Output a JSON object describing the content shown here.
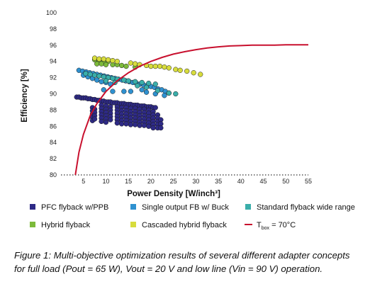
{
  "chart_data": {
    "type": "scatter",
    "xlabel": "Power Density [W/inch³]",
    "ylabel": "Efficiency [%]",
    "xlim": [
      0,
      55
    ],
    "ylim": [
      80,
      100
    ],
    "x_ticks": [
      5,
      10,
      15,
      20,
      25,
      30,
      35,
      40,
      45,
      50,
      55
    ],
    "y_ticks": [
      80,
      82,
      84,
      86,
      88,
      90,
      92,
      94,
      96,
      98,
      100
    ],
    "grid": false,
    "legend_position": "bottom",
    "series": [
      {
        "name": "PFC flyback w/PPB",
        "color": "#2e2a86",
        "kind": "scatter",
        "points": [
          [
            3.5,
            89.6
          ],
          [
            4.0,
            89.6
          ],
          [
            4.5,
            89.5
          ],
          [
            5.0,
            89.5
          ],
          [
            5.5,
            89.5
          ],
          [
            6.0,
            89.4
          ],
          [
            6.5,
            89.4
          ],
          [
            7.0,
            89.3
          ],
          [
            7.5,
            89.3
          ],
          [
            8.0,
            89.2
          ],
          [
            8.5,
            89.2
          ],
          [
            9.0,
            89.1
          ],
          [
            9.5,
            89.1
          ],
          [
            10.0,
            89.0
          ],
          [
            10.5,
            89.0
          ],
          [
            11.0,
            89.0
          ],
          [
            11.5,
            88.9
          ],
          [
            12.0,
            88.9
          ],
          [
            12.5,
            88.9
          ],
          [
            13.0,
            88.8
          ],
          [
            13.5,
            88.8
          ],
          [
            14.0,
            88.8
          ],
          [
            14.5,
            88.7
          ],
          [
            15.0,
            88.7
          ],
          [
            15.5,
            88.7
          ],
          [
            16.0,
            88.6
          ],
          [
            16.5,
            88.6
          ],
          [
            17.0,
            88.6
          ],
          [
            17.5,
            88.5
          ],
          [
            18.0,
            88.5
          ],
          [
            18.5,
            88.5
          ],
          [
            19.0,
            88.4
          ],
          [
            19.5,
            88.4
          ],
          [
            20.0,
            88.4
          ],
          [
            20.5,
            88.3
          ],
          [
            21.0,
            88.3
          ],
          [
            7.0,
            88.3
          ],
          [
            7.0,
            87.9
          ],
          [
            7.0,
            87.5
          ],
          [
            7.0,
            87.1
          ],
          [
            7.0,
            86.7
          ],
          [
            7.5,
            88.1
          ],
          [
            7.5,
            87.7
          ],
          [
            7.5,
            87.3
          ],
          [
            7.5,
            86.9
          ],
          [
            9.0,
            88.6
          ],
          [
            9.0,
            88.2
          ],
          [
            9.0,
            87.8
          ],
          [
            9.0,
            87.4
          ],
          [
            9.0,
            87.0
          ],
          [
            9.0,
            86.6
          ],
          [
            10.0,
            88.5
          ],
          [
            10.0,
            88.1
          ],
          [
            10.0,
            87.7
          ],
          [
            10.0,
            87.3
          ],
          [
            10.0,
            86.9
          ],
          [
            10.0,
            86.5
          ],
          [
            11.0,
            88.4
          ],
          [
            11.0,
            88.0
          ],
          [
            11.0,
            87.6
          ],
          [
            11.0,
            87.2
          ],
          [
            11.0,
            86.8
          ],
          [
            12.5,
            88.4
          ],
          [
            12.5,
            88.0
          ],
          [
            12.5,
            87.6
          ],
          [
            12.5,
            87.2
          ],
          [
            12.5,
            86.8
          ],
          [
            12.5,
            86.4
          ],
          [
            13.5,
            88.3
          ],
          [
            13.5,
            87.9
          ],
          [
            13.5,
            87.5
          ],
          [
            13.5,
            87.1
          ],
          [
            13.5,
            86.7
          ],
          [
            13.5,
            86.3
          ],
          [
            14.5,
            88.3
          ],
          [
            14.5,
            87.9
          ],
          [
            14.5,
            87.5
          ],
          [
            14.5,
            87.1
          ],
          [
            14.5,
            86.7
          ],
          [
            14.5,
            86.3
          ],
          [
            15.5,
            88.2
          ],
          [
            15.5,
            87.8
          ],
          [
            15.5,
            87.4
          ],
          [
            15.5,
            87.0
          ],
          [
            15.5,
            86.6
          ],
          [
            15.5,
            86.2
          ],
          [
            16.5,
            88.2
          ],
          [
            16.5,
            87.8
          ],
          [
            16.5,
            87.4
          ],
          [
            16.5,
            87.0
          ],
          [
            16.5,
            86.6
          ],
          [
            16.5,
            86.2
          ],
          [
            17.5,
            88.1
          ],
          [
            17.5,
            87.7
          ],
          [
            17.5,
            87.3
          ],
          [
            17.5,
            86.9
          ],
          [
            17.5,
            86.5
          ],
          [
            17.5,
            86.1
          ],
          [
            18.5,
            88.1
          ],
          [
            18.5,
            87.7
          ],
          [
            18.5,
            87.3
          ],
          [
            18.5,
            86.9
          ],
          [
            18.5,
            86.5
          ],
          [
            18.5,
            86.1
          ],
          [
            19.5,
            88.0
          ],
          [
            19.5,
            87.6
          ],
          [
            19.5,
            87.2
          ],
          [
            19.5,
            86.8
          ],
          [
            19.5,
            86.4
          ],
          [
            19.5,
            86.0
          ],
          [
            20.5,
            87.8
          ],
          [
            20.5,
            87.4
          ],
          [
            20.5,
            87.0
          ],
          [
            20.5,
            86.6
          ],
          [
            20.5,
            86.2
          ],
          [
            20.5,
            85.8
          ],
          [
            21.5,
            87.4
          ],
          [
            21.5,
            87.0
          ],
          [
            21.5,
            86.6
          ],
          [
            21.5,
            86.2
          ],
          [
            21.5,
            85.8
          ],
          [
            22.2,
            86.8
          ],
          [
            22.2,
            86.3
          ],
          [
            22.2,
            85.8
          ]
        ]
      },
      {
        "name": "Single output FB w/ Buck",
        "color": "#2f91d0",
        "kind": "scatter",
        "points": [
          [
            4.0,
            92.9
          ],
          [
            4.8,
            92.8
          ],
          [
            5.6,
            92.7
          ],
          [
            6.4,
            92.6
          ],
          [
            7.2,
            92.5
          ],
          [
            8.0,
            92.4
          ],
          [
            8.8,
            92.3
          ],
          [
            9.6,
            92.2
          ],
          [
            10.4,
            92.1
          ],
          [
            11.2,
            92.0
          ],
          [
            12.0,
            91.9
          ],
          [
            12.8,
            91.8
          ],
          [
            13.6,
            91.7
          ],
          [
            14.4,
            91.6
          ],
          [
            15.2,
            91.5
          ],
          [
            16.0,
            91.4
          ],
          [
            16.8,
            91.3
          ],
          [
            17.6,
            91.2
          ],
          [
            18.4,
            91.1
          ],
          [
            19.2,
            91.0
          ],
          [
            20.0,
            90.9
          ],
          [
            20.8,
            90.8
          ],
          [
            21.6,
            90.6
          ],
          [
            22.4,
            90.5
          ],
          [
            23.2,
            90.3
          ],
          [
            24.0,
            90.1
          ],
          [
            5.0,
            92.3
          ],
          [
            6.0,
            92.1
          ],
          [
            7.0,
            91.9
          ],
          [
            8.0,
            91.7
          ],
          [
            9.0,
            91.5
          ],
          [
            10.0,
            91.4
          ],
          [
            11.0,
            91.2
          ],
          [
            9.5,
            90.5
          ],
          [
            11.5,
            90.3
          ],
          [
            14.0,
            90.3
          ],
          [
            15.5,
            90.3
          ],
          [
            18.0,
            90.5
          ],
          [
            19.0,
            90.2
          ],
          [
            21.0,
            90.0
          ],
          [
            23.0,
            89.8
          ]
        ]
      },
      {
        "name": "Standard flyback wide range",
        "color": "#3aaeaa",
        "kind": "scatter",
        "points": [
          [
            5.5,
            92.5
          ],
          [
            6.5,
            92.4
          ],
          [
            7.5,
            92.3
          ],
          [
            8.5,
            92.2
          ],
          [
            9.5,
            92.1
          ],
          [
            10.5,
            92.0
          ],
          [
            11.5,
            91.9
          ],
          [
            12.5,
            91.8
          ],
          [
            14.0,
            91.7
          ],
          [
            15.0,
            91.6
          ],
          [
            16.5,
            91.5
          ],
          [
            18.0,
            91.4
          ],
          [
            19.5,
            91.3
          ],
          [
            21.0,
            91.2
          ],
          [
            10.0,
            91.6
          ],
          [
            12.0,
            91.4
          ],
          [
            17.0,
            91.0
          ],
          [
            19.0,
            90.8
          ],
          [
            21.5,
            90.4
          ],
          [
            24.0,
            90.1
          ],
          [
            25.5,
            90.0
          ]
        ]
      },
      {
        "name": "Hybrid flyback",
        "color": "#7cba3a",
        "kind": "scatter",
        "points": [
          [
            7.5,
            94.2
          ],
          [
            8.5,
            94.1
          ],
          [
            9.5,
            94.0
          ],
          [
            10.5,
            94.0
          ],
          [
            8.0,
            93.7
          ],
          [
            9.0,
            93.7
          ],
          [
            10.0,
            93.6
          ],
          [
            11.5,
            93.6
          ],
          [
            12.5,
            93.6
          ],
          [
            13.5,
            93.5
          ],
          [
            14.5,
            93.4
          ],
          [
            16.5,
            93.3
          ]
        ]
      },
      {
        "name": "Cascaded hybrid flyback",
        "color": "#d7dc3c",
        "kind": "scatter",
        "points": [
          [
            7.5,
            94.4
          ],
          [
            8.5,
            94.3
          ],
          [
            9.5,
            94.3
          ],
          [
            10.5,
            94.2
          ],
          [
            11.5,
            94.1
          ],
          [
            12.5,
            94.0
          ],
          [
            15.5,
            93.8
          ],
          [
            16.5,
            93.7
          ],
          [
            17.5,
            93.6
          ],
          [
            19.0,
            93.5
          ],
          [
            20.0,
            93.4
          ],
          [
            21.0,
            93.4
          ],
          [
            22.0,
            93.4
          ],
          [
            23.0,
            93.3
          ],
          [
            24.0,
            93.2
          ],
          [
            25.5,
            93.0
          ],
          [
            26.5,
            92.9
          ],
          [
            28.0,
            92.8
          ],
          [
            29.5,
            92.6
          ],
          [
            31.0,
            92.4
          ]
        ]
      },
      {
        "name": "T<sub>box</sub> = 70°C",
        "color": "#c8102e",
        "kind": "line",
        "points": [
          [
            3.2,
            80.0
          ],
          [
            4.0,
            82.8
          ],
          [
            5.0,
            85.0
          ],
          [
            6.5,
            87.3
          ],
          [
            8.0,
            88.8
          ],
          [
            10.0,
            90.3
          ],
          [
            12.5,
            91.6
          ],
          [
            15.0,
            92.6
          ],
          [
            17.5,
            93.4
          ],
          [
            20.0,
            94.0
          ],
          [
            22.5,
            94.5
          ],
          [
            25.0,
            94.9
          ],
          [
            27.5,
            95.2
          ],
          [
            30.0,
            95.45
          ],
          [
            32.5,
            95.65
          ],
          [
            35.0,
            95.8
          ],
          [
            37.5,
            95.9
          ],
          [
            40.0,
            95.95
          ],
          [
            42.5,
            96.0
          ],
          [
            45.0,
            96.0
          ],
          [
            47.5,
            96.0
          ],
          [
            50.0,
            96.05
          ],
          [
            52.5,
            96.05
          ],
          [
            55.0,
            96.05
          ]
        ]
      }
    ]
  },
  "legend": {
    "items": [
      {
        "label": "PFC flyback w/PPB",
        "color": "#2e2a86",
        "marker": "square"
      },
      {
        "label": "Single output FB w/ Buck",
        "color": "#2f91d0",
        "marker": "square"
      },
      {
        "label": "Standard flyback wide range",
        "color": "#3aaeaa",
        "marker": "square"
      },
      {
        "label": "Hybrid flyback",
        "color": "#7cba3a",
        "marker": "square"
      },
      {
        "label": "Cascaded hybrid flyback",
        "color": "#d7dc3c",
        "marker": "square"
      }
    ],
    "tbox_prefix": "T",
    "tbox_sub": "box",
    "tbox_suffix": " = 70°C",
    "tbox_color": "#c8102e"
  },
  "caption": {
    "text": "Figure 1: Multi-objective optimization results of several different adapter concepts for full load (Pout = 65 W), Vout = 20 V and low line (Vin = 90 V) operation."
  }
}
